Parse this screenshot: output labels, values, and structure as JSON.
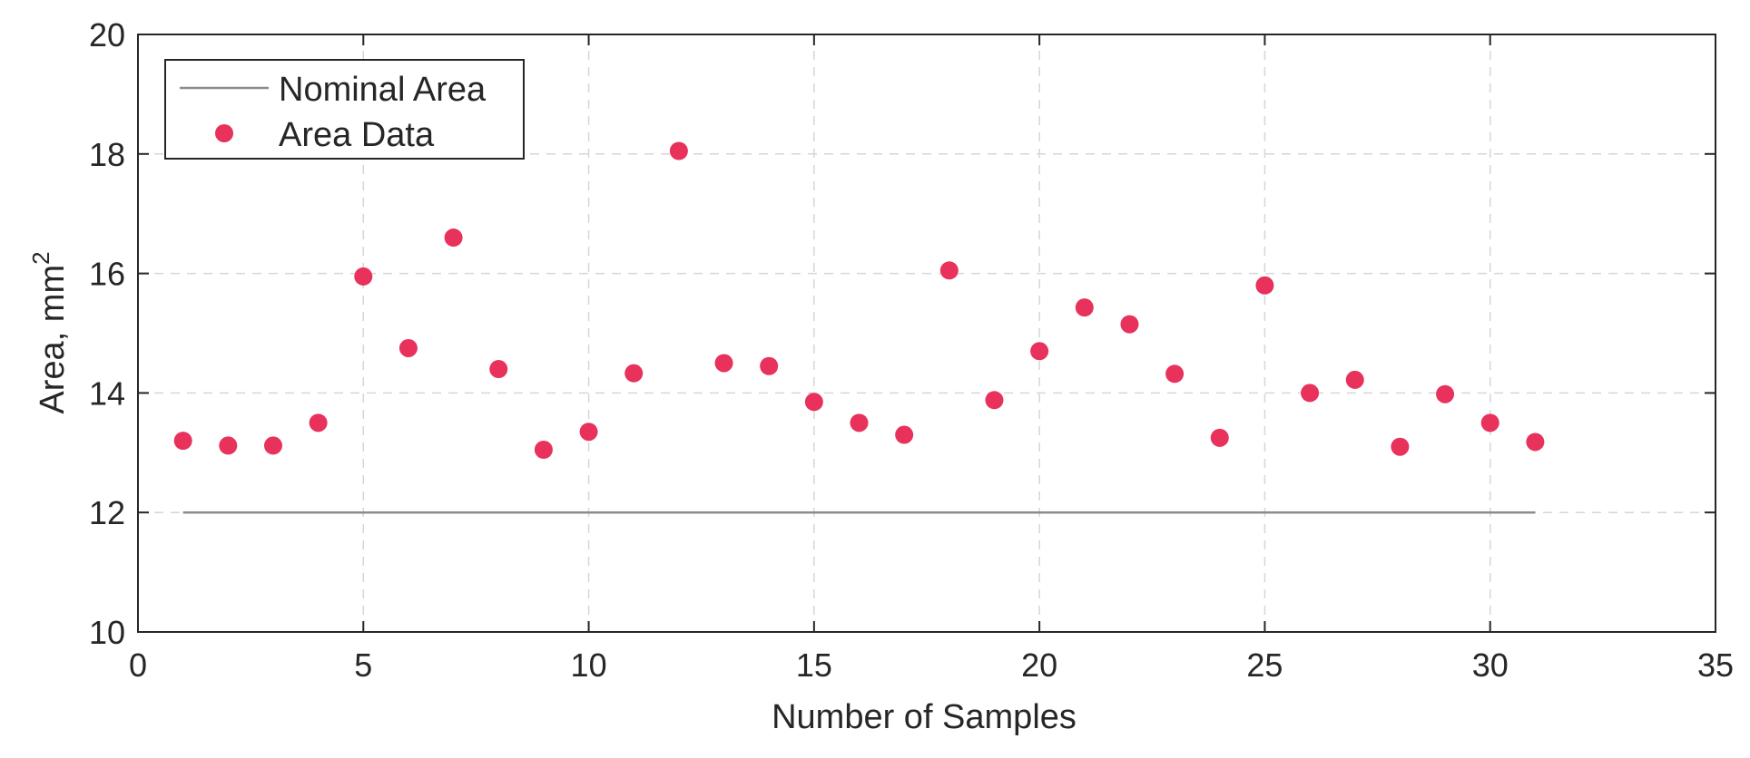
{
  "chart_data": {
    "type": "scatter",
    "xlabel": "Number of Samples",
    "ylabel_main": "Area, mm",
    "ylabel_superscript": "2",
    "xlim": [
      0,
      35
    ],
    "ylim": [
      10,
      20
    ],
    "xticks": [
      0,
      5,
      10,
      15,
      20,
      25,
      30,
      35
    ],
    "yticks": [
      10,
      12,
      14,
      16,
      18,
      20
    ],
    "xtick_labels": [
      "0",
      "5",
      "10",
      "15",
      "20",
      "25",
      "30",
      "35"
    ],
    "ytick_labels": [
      "10",
      "12",
      "14",
      "16",
      "18",
      "20"
    ],
    "grid": true,
    "legend_position": "top-left",
    "series": [
      {
        "name": "Nominal Area",
        "type": "line",
        "color": "#8c8c8c",
        "x": [
          1,
          31
        ],
        "y": [
          12,
          12
        ]
      },
      {
        "name": "Area Data",
        "type": "scatter",
        "color": "#e8315b",
        "x": [
          1,
          2,
          3,
          4,
          5,
          6,
          7,
          8,
          9,
          10,
          11,
          12,
          13,
          14,
          15,
          16,
          17,
          18,
          19,
          20,
          21,
          22,
          23,
          24,
          25,
          26,
          27,
          28,
          29,
          30,
          31
        ],
        "y": [
          13.2,
          13.12,
          13.12,
          13.5,
          15.95,
          14.75,
          16.6,
          14.4,
          13.05,
          13.35,
          14.33,
          18.05,
          14.5,
          14.45,
          13.85,
          13.5,
          13.3,
          16.05,
          13.88,
          14.7,
          15.43,
          15.15,
          14.32,
          13.25,
          15.8,
          14.0,
          14.22,
          13.1,
          13.98,
          13.5,
          13.18
        ]
      }
    ]
  }
}
